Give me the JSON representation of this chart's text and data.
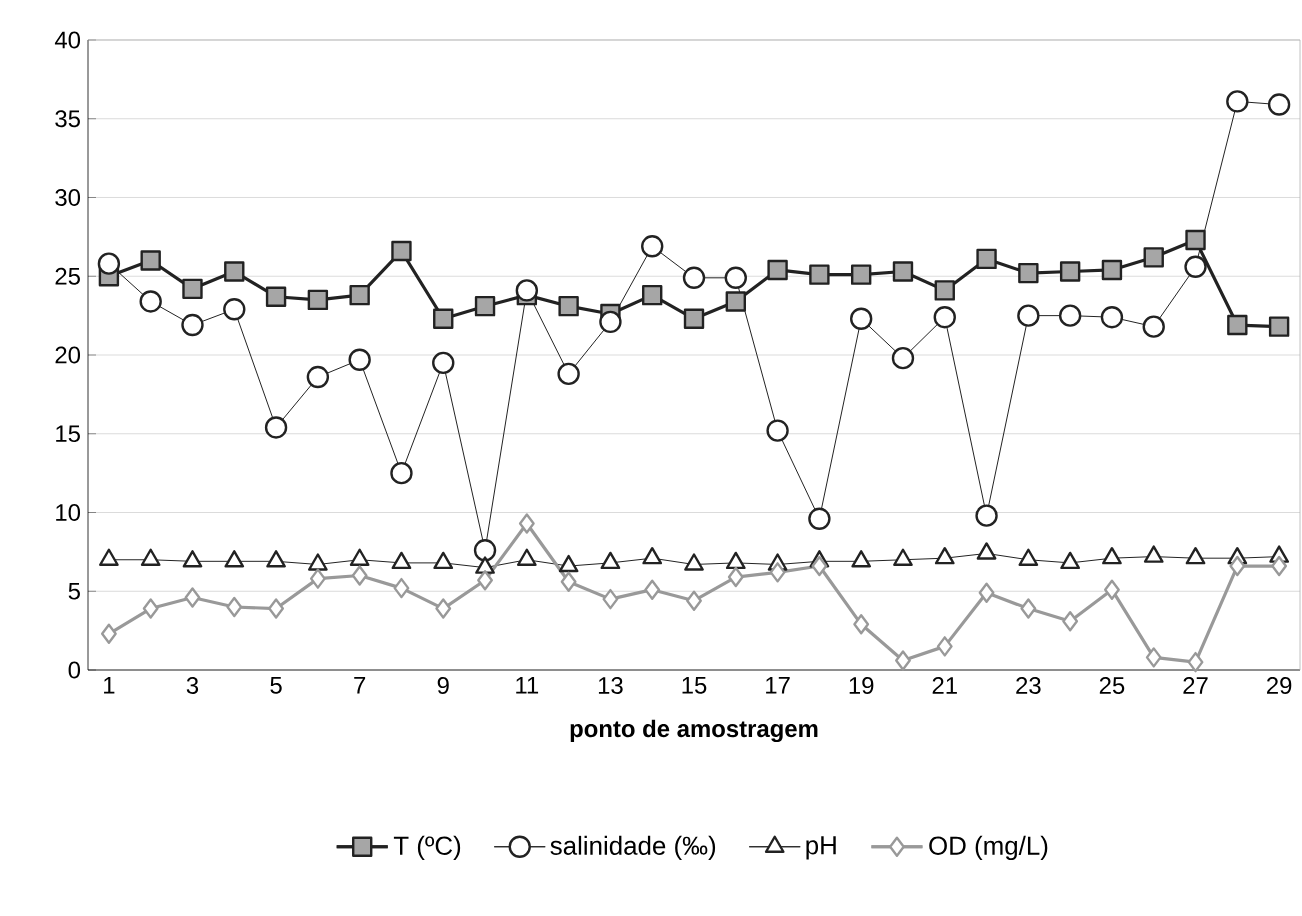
{
  "chart_data": {
    "type": "line",
    "xlabel": "ponto de amostragem",
    "categories": [
      "1",
      null,
      "3",
      null,
      "5",
      null,
      "7",
      null,
      "9",
      null,
      "11",
      null,
      "13",
      null,
      "15",
      null,
      "17",
      null,
      "19",
      null,
      "21",
      null,
      "23",
      null,
      "25",
      null,
      "27",
      null,
      "29"
    ],
    "series": [
      {
        "name": "T (ºC)",
        "color": "#222222",
        "marker": "square",
        "values": [
          25,
          26,
          24.2,
          25.3,
          23.7,
          23.5,
          23.8,
          26.6,
          22.3,
          23.1,
          23.8,
          23.1,
          22.6,
          23.8,
          22.3,
          23.4,
          25.4,
          25.1,
          25.1,
          25.3,
          24.1,
          26.1,
          25.2,
          25.3,
          25.4,
          26.2,
          27.3,
          21.9,
          21.8
        ]
      },
      {
        "name": "salinidade (‰)",
        "color": "#222222",
        "marker": "circle",
        "values": [
          25.8,
          23.4,
          21.9,
          22.9,
          15.4,
          18.6,
          19.7,
          12.5,
          19.5,
          7.6,
          24.1,
          18.8,
          22.1,
          26.9,
          24.9,
          24.9,
          15.2,
          9.6,
          22.3,
          19.8,
          22.4,
          9.8,
          22.5,
          22.5,
          22.4,
          21.8,
          25.6,
          36.1,
          35.9
        ]
      },
      {
        "name": "pH",
        "color": "#222222",
        "marker": "triangle",
        "values": [
          7.0,
          7.0,
          6.9,
          6.9,
          6.9,
          6.7,
          7.0,
          6.8,
          6.8,
          6.5,
          7.0,
          6.6,
          6.8,
          7.1,
          6.7,
          6.8,
          6.7,
          6.9,
          6.9,
          7.0,
          7.1,
          7.4,
          7.0,
          6.8,
          7.1,
          7.2,
          7.1,
          7.1,
          7.2
        ]
      },
      {
        "name": "OD (mg/L)",
        "color": "#999999",
        "marker": "diamond",
        "values": [
          2.3,
          3.9,
          4.6,
          4.0,
          3.9,
          5.8,
          6.0,
          5.2,
          3.9,
          5.7,
          9.3,
          5.6,
          4.5,
          5.1,
          4.4,
          5.9,
          6.2,
          6.6,
          2.9,
          0.6,
          1.5,
          4.9,
          3.9,
          3.1,
          5.1,
          0.8,
          0.5,
          6.6,
          6.6
        ]
      }
    ],
    "ylim": [
      0,
      40
    ],
    "yticks": [
      0,
      5,
      10,
      15,
      20,
      25,
      30,
      35,
      40
    ],
    "grid": "y",
    "legend": "bottom"
  }
}
